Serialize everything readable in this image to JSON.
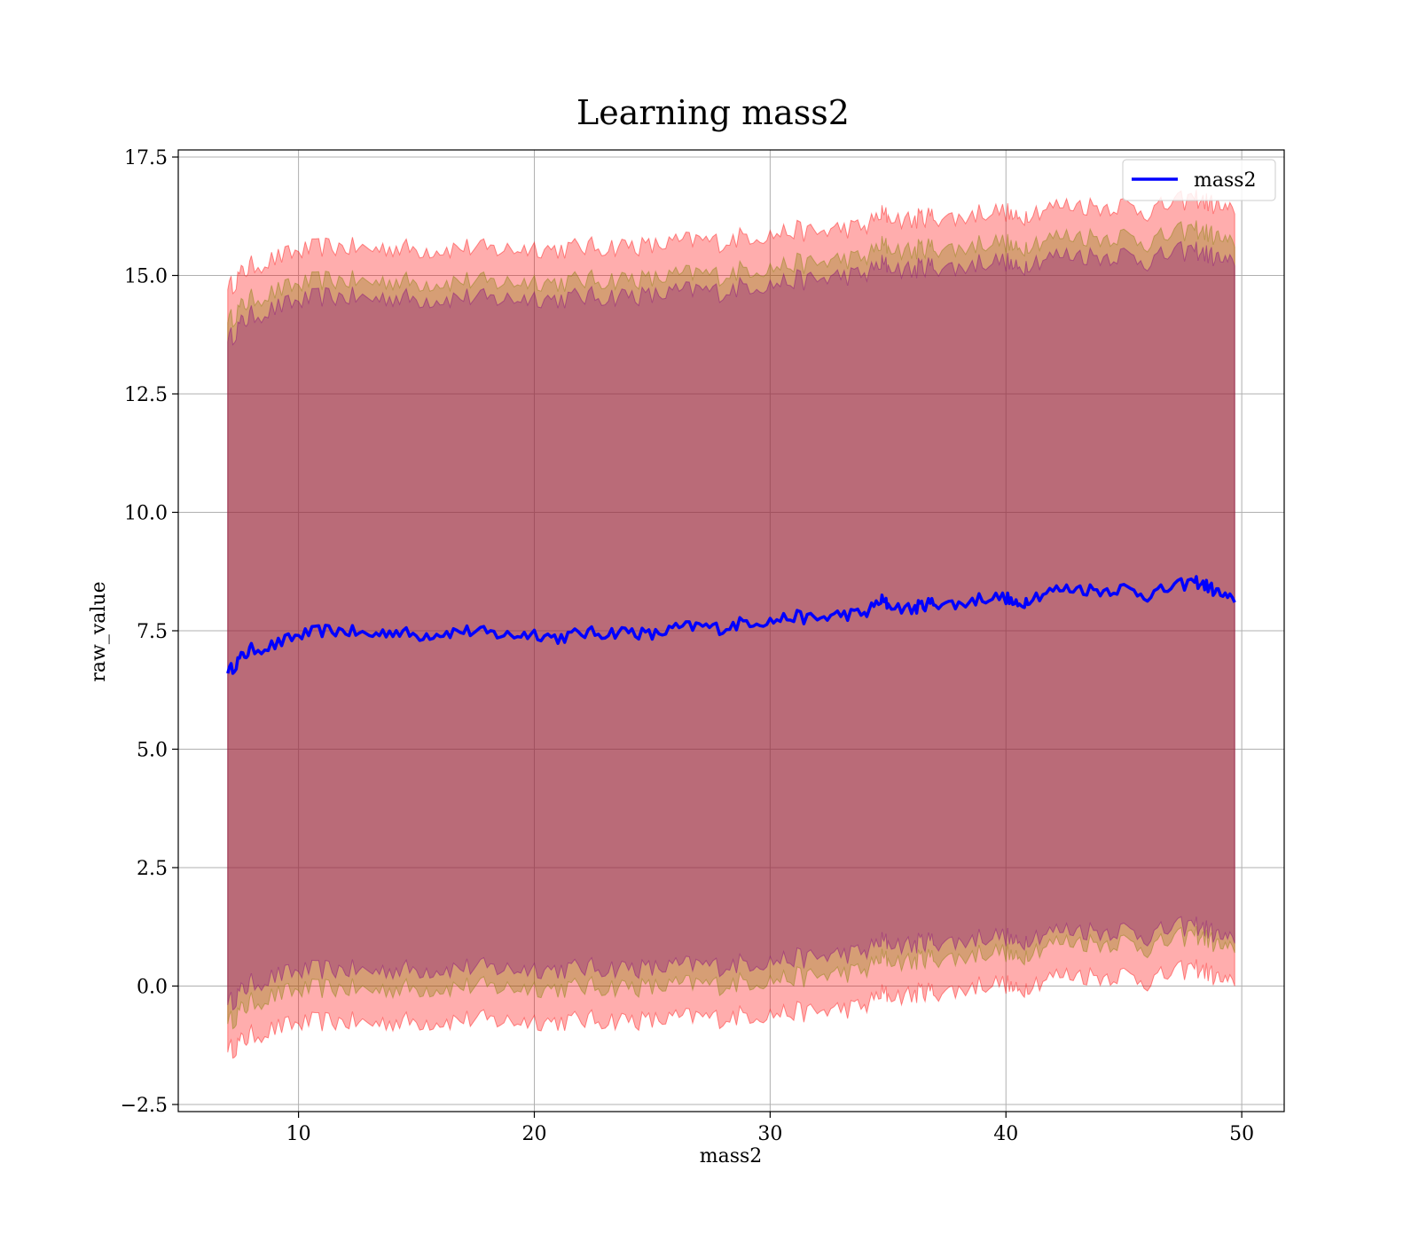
{
  "chart_data": {
    "type": "area",
    "title": "Learning mass2",
    "xlabel": "mass2",
    "ylabel": "raw_value",
    "xlim": [
      4.9,
      51.8
    ],
    "ylim": [
      -2.65,
      17.65
    ],
    "x_ticks": [
      10,
      20,
      30,
      40,
      50
    ],
    "x_tick_labels": [
      "10",
      "20",
      "30",
      "40",
      "50"
    ],
    "y_ticks": [
      -2.5,
      0.0,
      2.5,
      5.0,
      7.5,
      10.0,
      12.5,
      15.0,
      17.5
    ],
    "y_tick_labels": [
      "−2.5",
      "0.0",
      "2.5",
      "5.0",
      "7.5",
      "10.0",
      "12.5",
      "15.0",
      "17.5"
    ],
    "grid": true,
    "legend": {
      "placement": "top-right",
      "entries": [
        {
          "label": "mass2",
          "color": "#0000ff"
        }
      ]
    },
    "series": [
      {
        "name": "mass2",
        "color": "#0000ff",
        "x": [
          7.0,
          7.5,
          8.0,
          9.0,
          10.0,
          11.0,
          12.0,
          13.0,
          14.0,
          15.0,
          16.0,
          17.0,
          18.0,
          19.0,
          20.0,
          21.0,
          22.0,
          23.0,
          24.0,
          25.0,
          26.0,
          27.0,
          28.0,
          29.0,
          30.0,
          31.0,
          32.0,
          33.0,
          34.0,
          34.7,
          35.0,
          36.0,
          36.5,
          37.0,
          38.0,
          39.0,
          40.0,
          40.5,
          41.0,
          42.0,
          43.0,
          44.0,
          45.0,
          46.0,
          47.0,
          48.0,
          48.5,
          49.0,
          49.7
        ],
        "mean": [
          6.6,
          6.9,
          7.1,
          7.2,
          7.4,
          7.5,
          7.5,
          7.4,
          7.5,
          7.4,
          7.45,
          7.5,
          7.45,
          7.4,
          7.45,
          7.35,
          7.45,
          7.45,
          7.5,
          7.4,
          7.55,
          7.6,
          7.55,
          7.7,
          7.7,
          7.8,
          7.75,
          7.85,
          7.85,
          8.15,
          8.05,
          7.95,
          8.05,
          8.1,
          8.05,
          8.2,
          8.2,
          8.0,
          8.2,
          8.35,
          8.4,
          8.35,
          8.4,
          8.25,
          8.4,
          8.55,
          8.45,
          8.3,
          8.1
        ]
      }
    ],
    "bands": [
      {
        "color": "#ff0000",
        "opacity": 0.32,
        "lower": [
          -1.4,
          -1.2,
          -1.05,
          -0.9,
          -0.8,
          -0.75,
          -0.75,
          -0.8,
          -0.75,
          -0.75,
          -0.75,
          -0.7,
          -0.72,
          -0.75,
          -0.72,
          -0.75,
          -0.72,
          -0.72,
          -0.7,
          -0.75,
          -0.68,
          -0.65,
          -0.68,
          -0.6,
          -0.6,
          -0.55,
          -0.55,
          -0.48,
          -0.45,
          -0.15,
          -0.2,
          -0.2,
          -0.1,
          -0.12,
          -0.1,
          0.05,
          0.05,
          -0.15,
          0.05,
          0.2,
          0.25,
          0.2,
          0.25,
          0.1,
          0.25,
          0.4,
          0.3,
          0.15,
          0.0
        ],
        "upper": [
          14.7,
          15.0,
          15.2,
          15.35,
          15.5,
          15.6,
          15.6,
          15.55,
          15.6,
          15.55,
          15.55,
          15.6,
          15.55,
          15.55,
          15.6,
          15.55,
          15.6,
          15.6,
          15.65,
          15.6,
          15.7,
          15.75,
          15.7,
          15.85,
          15.85,
          15.95,
          15.9,
          16.0,
          16.0,
          16.3,
          16.25,
          16.15,
          16.25,
          16.25,
          16.2,
          16.35,
          16.35,
          16.15,
          16.35,
          16.45,
          16.5,
          16.45,
          16.5,
          16.35,
          16.5,
          16.65,
          16.55,
          16.45,
          16.3
        ]
      },
      {
        "color": "#808000",
        "opacity": 0.32,
        "lower": [
          -0.8,
          -0.55,
          -0.35,
          -0.2,
          -0.1,
          -0.05,
          -0.05,
          -0.1,
          -0.05,
          -0.05,
          -0.05,
          0.0,
          -0.02,
          -0.05,
          -0.02,
          -0.05,
          -0.02,
          -0.02,
          0.0,
          -0.05,
          0.02,
          0.05,
          0.02,
          0.1,
          0.12,
          0.18,
          0.2,
          0.28,
          0.3,
          0.6,
          0.55,
          0.5,
          0.6,
          0.6,
          0.58,
          0.72,
          0.72,
          0.52,
          0.75,
          0.9,
          0.95,
          0.9,
          0.95,
          0.8,
          0.95,
          1.1,
          1.0,
          0.85,
          0.7
        ],
        "upper": [
          14.0,
          14.3,
          14.5,
          14.65,
          14.8,
          14.9,
          14.9,
          14.85,
          14.9,
          14.85,
          14.85,
          14.9,
          14.85,
          14.85,
          14.9,
          14.85,
          14.9,
          14.9,
          14.95,
          14.9,
          15.0,
          15.05,
          15.0,
          15.15,
          15.15,
          15.25,
          15.25,
          15.35,
          15.35,
          15.65,
          15.6,
          15.5,
          15.6,
          15.6,
          15.55,
          15.7,
          15.7,
          15.5,
          15.7,
          15.8,
          15.85,
          15.8,
          15.85,
          15.7,
          15.85,
          16.0,
          15.9,
          15.8,
          15.6
        ]
      },
      {
        "color": "#800080",
        "opacity": 0.32,
        "lower": [
          -0.4,
          -0.15,
          0.05,
          0.2,
          0.3,
          0.35,
          0.35,
          0.3,
          0.35,
          0.35,
          0.35,
          0.4,
          0.38,
          0.35,
          0.38,
          0.35,
          0.38,
          0.38,
          0.4,
          0.35,
          0.42,
          0.45,
          0.42,
          0.5,
          0.52,
          0.58,
          0.6,
          0.68,
          0.7,
          0.95,
          0.92,
          0.85,
          0.95,
          0.95,
          0.92,
          1.05,
          1.05,
          0.85,
          1.05,
          1.15,
          1.2,
          1.15,
          1.2,
          1.05,
          1.2,
          1.3,
          1.2,
          1.05,
          0.9
        ],
        "upper": [
          13.6,
          13.95,
          14.15,
          14.3,
          14.45,
          14.55,
          14.55,
          14.5,
          14.55,
          14.5,
          14.5,
          14.55,
          14.5,
          14.5,
          14.55,
          14.5,
          14.55,
          14.55,
          14.6,
          14.55,
          14.65,
          14.7,
          14.65,
          14.8,
          14.8,
          14.9,
          14.9,
          15.0,
          15.0,
          15.25,
          15.2,
          15.1,
          15.2,
          15.2,
          15.15,
          15.3,
          15.3,
          15.1,
          15.3,
          15.4,
          15.45,
          15.4,
          15.45,
          15.3,
          15.45,
          15.55,
          15.45,
          15.35,
          15.2
        ]
      }
    ]
  }
}
